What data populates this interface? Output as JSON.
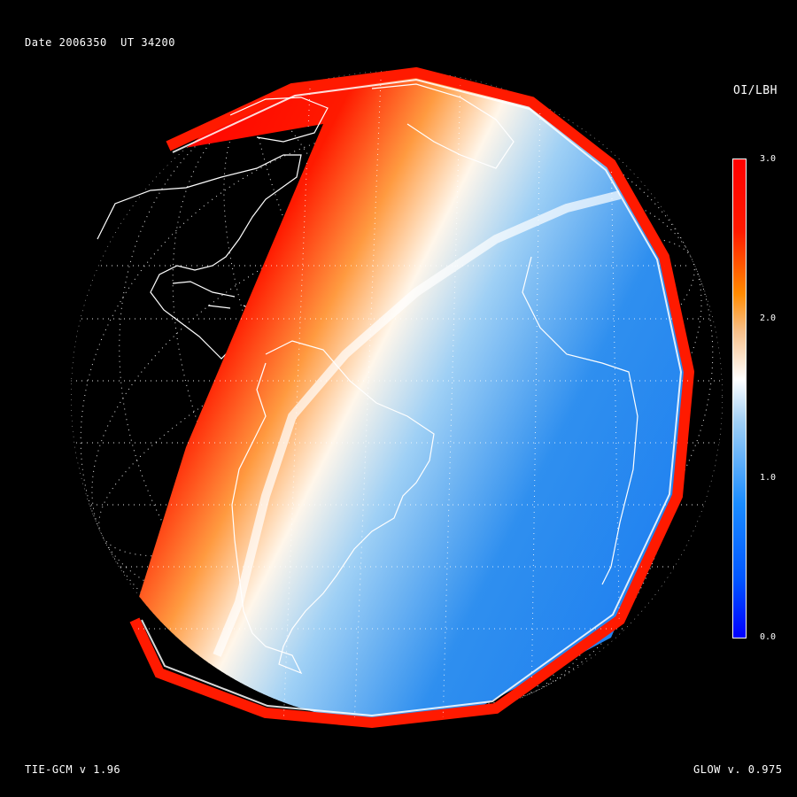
{
  "header": {
    "date_label": "Date 2006350",
    "ut_label": "UT 34200"
  },
  "colorbar": {
    "title": "OI/LBH",
    "ticks": [
      "3.0",
      "2.0",
      "1.0",
      "0.0"
    ],
    "min": 0.0,
    "max": 3.0,
    "colors": {
      "high": "#ff0000",
      "mid_high": "#ff8a00",
      "mid": "#ffffff",
      "mid_low": "#1a8cff",
      "low": "#0000ff"
    }
  },
  "footer": {
    "model_left": "TIE-GCM v 1.96",
    "model_right": "GLOW v. 0.975"
  },
  "map": {
    "projection": "orthographic",
    "central_region": "South America / Atlantic",
    "grid": "dotted lat/lon",
    "coastlines": "white"
  }
}
